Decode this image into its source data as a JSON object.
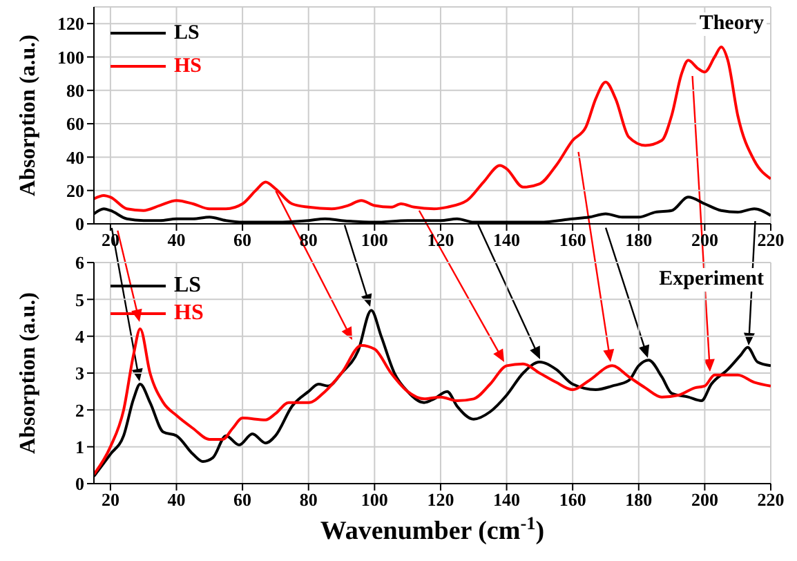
{
  "chart_data": [
    {
      "type": "line",
      "ylabel": "Absorption (a.u.)",
      "annotations": [
        "Theory"
      ],
      "xlim": [
        15,
        220
      ],
      "xticks": [
        20,
        40,
        60,
        80,
        100,
        120,
        140,
        160,
        180,
        200,
        220
      ],
      "ylim": [
        0,
        130
      ],
      "yticks": [
        0,
        20,
        40,
        60,
        80,
        100,
        120
      ],
      "grid": true,
      "legend": "top left",
      "series": [
        {
          "name": "LS",
          "color": "#000000",
          "x": [
            15,
            18,
            20,
            25,
            30,
            35,
            40,
            45,
            50,
            55,
            60,
            70,
            80,
            85,
            90,
            100,
            110,
            120,
            125,
            130,
            140,
            150,
            160,
            165,
            170,
            175,
            180,
            185,
            190,
            195,
            200,
            205,
            210,
            215,
            220
          ],
          "values": [
            6,
            9,
            8,
            3,
            2,
            2,
            3,
            3,
            4,
            2,
            1,
            1,
            2,
            3,
            2,
            1,
            2,
            2,
            3,
            1,
            1,
            1,
            3,
            4,
            6,
            4,
            4,
            7,
            8,
            16,
            12,
            8,
            7,
            9,
            5
          ]
        },
        {
          "name": "HS",
          "color": "#ff0000",
          "x": [
            15,
            18,
            20,
            25,
            30,
            35,
            40,
            45,
            50,
            55,
            60,
            64,
            67,
            70,
            75,
            80,
            87,
            92,
            96,
            100,
            105,
            108,
            112,
            118,
            122,
            128,
            133,
            138,
            140,
            145,
            150,
            155,
            160,
            164,
            167,
            170,
            173,
            177,
            182,
            187,
            190,
            193,
            195,
            198,
            200,
            203,
            205,
            207,
            210,
            215,
            220
          ],
          "values": [
            15,
            17,
            16,
            9,
            8,
            11,
            14,
            12,
            9,
            9,
            12,
            20,
            25,
            21,
            12,
            10,
            9,
            11,
            14,
            11,
            10,
            12,
            10,
            9,
            10,
            14,
            25,
            35,
            33,
            22,
            24,
            35,
            50,
            58,
            75,
            85,
            75,
            52,
            47,
            50,
            65,
            90,
            98,
            93,
            91,
            100,
            106,
            98,
            65,
            38,
            27
          ]
        }
      ]
    },
    {
      "type": "line",
      "xlabel": "Wavenumber (cm$^{-1}$)",
      "ylabel": "Absorption (a.u.)",
      "annotations": [
        "Experiment"
      ],
      "xlim": [
        15,
        220
      ],
      "xticks": [
        20,
        40,
        60,
        80,
        100,
        120,
        140,
        160,
        180,
        200,
        220
      ],
      "ylim": [
        0,
        6
      ],
      "yticks": [
        0,
        1,
        2,
        3,
        4,
        5,
        6
      ],
      "grid": true,
      "legend": "top left",
      "series": [
        {
          "name": "LS",
          "color": "#000000",
          "x": [
            15,
            20,
            24,
            27,
            29,
            32,
            36,
            40,
            45,
            48,
            51,
            55,
            59,
            63,
            67,
            70,
            75,
            80,
            83,
            86,
            90,
            95,
            99,
            102,
            106,
            110,
            115,
            118,
            122,
            125,
            130,
            135,
            140,
            145,
            150,
            155,
            160,
            167,
            172,
            177,
            180,
            183,
            187,
            190,
            195,
            199,
            202,
            207,
            211,
            213,
            216,
            220
          ],
          "values": [
            0.2,
            0.8,
            1.3,
            2.3,
            2.7,
            2.2,
            1.4,
            1.3,
            0.8,
            0.6,
            0.7,
            1.3,
            1.05,
            1.35,
            1.1,
            1.3,
            2.1,
            2.5,
            2.7,
            2.65,
            3.0,
            3.6,
            4.7,
            4.0,
            3.0,
            2.5,
            2.2,
            2.3,
            2.5,
            2.1,
            1.75,
            1.95,
            2.4,
            3.0,
            3.3,
            3.1,
            2.7,
            2.55,
            2.65,
            2.8,
            3.2,
            3.35,
            2.9,
            2.45,
            2.35,
            2.25,
            2.7,
            3.1,
            3.5,
            3.7,
            3.3,
            3.2
          ]
        },
        {
          "name": "HS",
          "color": "#ff0000",
          "x": [
            15,
            20,
            24,
            27,
            29,
            32,
            36,
            40,
            45,
            50,
            54,
            57,
            60,
            67,
            70,
            74,
            80,
            85,
            90,
            96,
            100,
            105,
            110,
            115,
            120,
            125,
            130,
            135,
            140,
            145,
            150,
            155,
            160,
            165,
            172,
            177,
            182,
            187,
            192,
            197,
            200,
            203,
            210,
            215,
            220
          ],
          "values": [
            0.25,
            1.0,
            2.0,
            3.5,
            4.2,
            3.0,
            2.2,
            1.85,
            1.5,
            1.2,
            1.2,
            1.5,
            1.78,
            1.73,
            1.9,
            2.2,
            2.2,
            2.5,
            3.0,
            3.75,
            3.65,
            3.0,
            2.5,
            2.3,
            2.35,
            2.25,
            2.3,
            2.7,
            3.2,
            3.25,
            3.0,
            2.75,
            2.55,
            2.8,
            3.2,
            2.9,
            2.6,
            2.35,
            2.4,
            2.6,
            2.65,
            2.95,
            2.95,
            2.75,
            2.65
          ]
        }
      ]
    }
  ]
}
